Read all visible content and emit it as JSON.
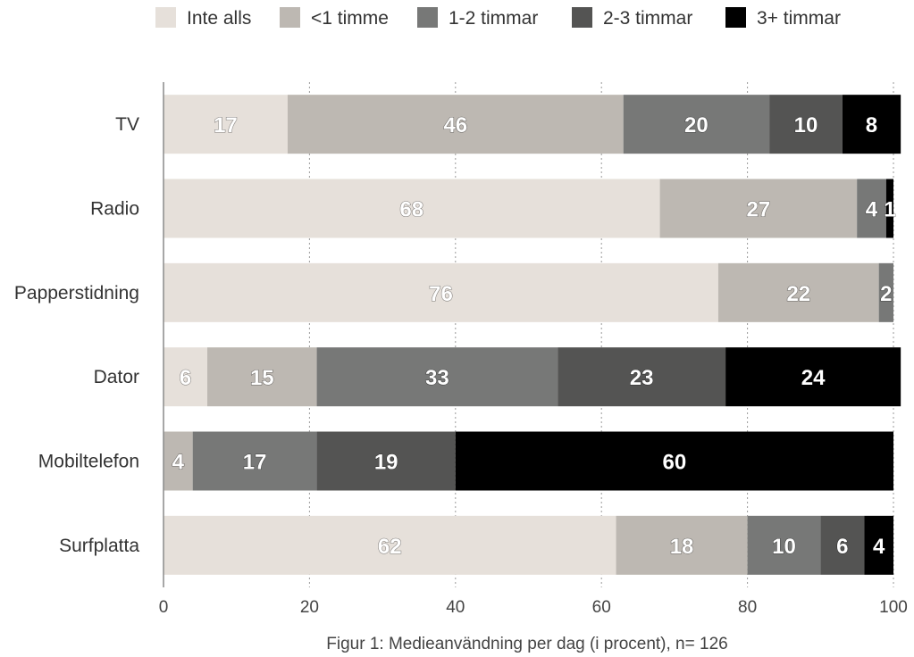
{
  "chart_data": {
    "type": "bar",
    "orientation": "horizontal",
    "stacked": true,
    "categories": [
      "TV",
      "Radio",
      "Papperstidning",
      "Dator",
      "Mobiltelefon",
      "Surfplatta"
    ],
    "series": [
      {
        "name": "Inte alls",
        "color": "#e6e0da",
        "values": [
          17,
          68,
          76,
          6,
          0,
          62
        ],
        "labels": [
          "17",
          "68",
          "76",
          "6",
          "",
          "62"
        ]
      },
      {
        "name": "<1 timme",
        "color": "#bdb8b2",
        "values": [
          46,
          27,
          22,
          15,
          4,
          18
        ],
        "labels": [
          "46",
          "27",
          "22",
          "15",
          "4",
          "18"
        ]
      },
      {
        "name": "1-2 timmar",
        "color": "#777877",
        "values": [
          20,
          4,
          2,
          33,
          17,
          10
        ],
        "labels": [
          "20",
          "4",
          "2",
          "33",
          "17",
          "10"
        ]
      },
      {
        "name": "2-3 timmar",
        "color": "#545453",
        "values": [
          10,
          0,
          0,
          23,
          19,
          6
        ],
        "labels": [
          "10",
          "",
          "",
          "23",
          "19",
          "6"
        ]
      },
      {
        "name": "3+ timmar",
        "color": "#000000",
        "values": [
          8,
          1,
          0,
          24,
          60,
          4
        ],
        "labels": [
          "8",
          "1",
          "",
          "24",
          "60",
          "4"
        ]
      }
    ],
    "xlim": [
      0,
      100
    ],
    "xticks": [
      "0",
      "20",
      "40",
      "60",
      "80",
      "100"
    ],
    "caption": "Figur 1: Medieanvändning per dag (i procent), n= 126",
    "legend_position": "top",
    "grid": "vertical dashed"
  }
}
